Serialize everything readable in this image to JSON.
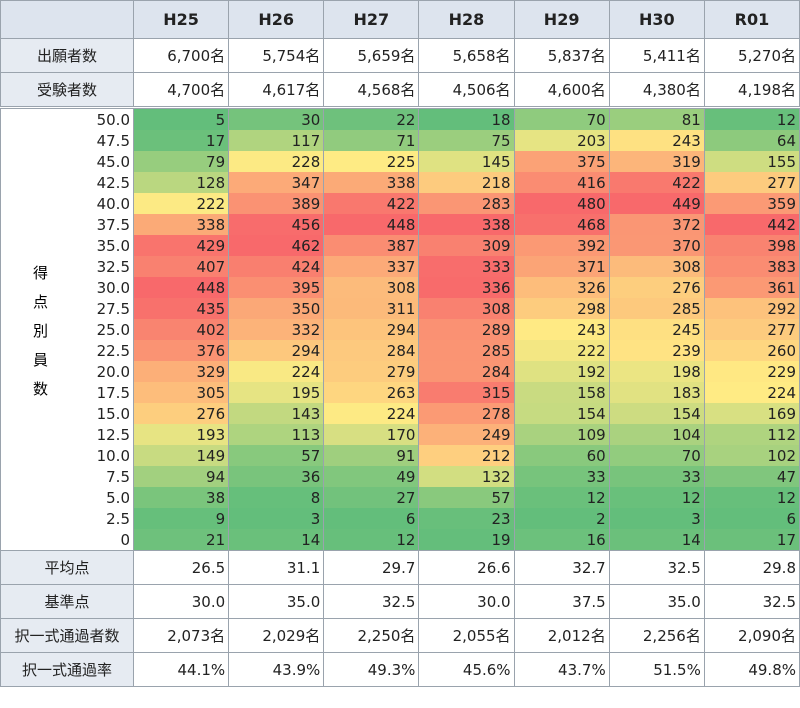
{
  "header": [
    "H25",
    "H26",
    "H27",
    "H28",
    "H29",
    "H30",
    "R01"
  ],
  "top_rows": [
    {
      "label": "出願者数",
      "values": [
        "6,700名",
        "5,754名",
        "5,659名",
        "5,658名",
        "5,837名",
        "5,411名",
        "5,270名"
      ]
    },
    {
      "label": "受験者数",
      "values": [
        "4,700名",
        "4,617名",
        "4,568名",
        "4,506名",
        "4,600名",
        "4,380名",
        "4,198名"
      ]
    }
  ],
  "heatmap": {
    "label": "得点別員数",
    "rows": [
      {
        "score": "50.0",
        "counts": [
          5,
          30,
          22,
          18,
          70,
          81,
          12
        ]
      },
      {
        "score": "47.5",
        "counts": [
          17,
          117,
          71,
          75,
          203,
          243,
          64
        ]
      },
      {
        "score": "45.0",
        "counts": [
          79,
          228,
          225,
          145,
          375,
          319,
          155
        ]
      },
      {
        "score": "42.5",
        "counts": [
          128,
          347,
          338,
          218,
          416,
          422,
          277
        ]
      },
      {
        "score": "40.0",
        "counts": [
          222,
          389,
          422,
          283,
          480,
          449,
          359
        ]
      },
      {
        "score": "37.5",
        "counts": [
          338,
          456,
          448,
          338,
          468,
          372,
          442
        ]
      },
      {
        "score": "35.0",
        "counts": [
          429,
          462,
          387,
          309,
          392,
          370,
          398
        ]
      },
      {
        "score": "32.5",
        "counts": [
          407,
          424,
          337,
          333,
          371,
          308,
          383
        ]
      },
      {
        "score": "30.0",
        "counts": [
          448,
          395,
          308,
          336,
          326,
          276,
          361
        ]
      },
      {
        "score": "27.5",
        "counts": [
          435,
          350,
          311,
          308,
          298,
          285,
          292
        ]
      },
      {
        "score": "25.0",
        "counts": [
          402,
          332,
          294,
          289,
          243,
          245,
          277
        ]
      },
      {
        "score": "22.5",
        "counts": [
          376,
          294,
          284,
          285,
          222,
          239,
          260
        ]
      },
      {
        "score": "20.0",
        "counts": [
          329,
          224,
          279,
          284,
          192,
          198,
          229
        ]
      },
      {
        "score": "17.5",
        "counts": [
          305,
          195,
          263,
          315,
          158,
          183,
          224
        ]
      },
      {
        "score": "15.0",
        "counts": [
          276,
          143,
          224,
          278,
          154,
          154,
          169
        ]
      },
      {
        "score": "12.5",
        "counts": [
          193,
          113,
          170,
          249,
          109,
          104,
          112
        ]
      },
      {
        "score": "10.0",
        "counts": [
          149,
          57,
          91,
          212,
          60,
          70,
          102
        ]
      },
      {
        "score": "7.5",
        "counts": [
          94,
          36,
          49,
          132,
          33,
          33,
          47
        ]
      },
      {
        "score": "5.0",
        "counts": [
          38,
          8,
          27,
          57,
          12,
          12,
          12
        ]
      },
      {
        "score": "2.5",
        "counts": [
          9,
          3,
          6,
          23,
          2,
          3,
          6
        ]
      },
      {
        "score": "0",
        "counts": [
          21,
          14,
          12,
          19,
          16,
          14,
          17
        ]
      }
    ]
  },
  "bottom_rows": [
    {
      "label": "平均点",
      "values": [
        "26.5",
        "31.1",
        "29.7",
        "26.6",
        "32.7",
        "32.5",
        "29.8"
      ]
    },
    {
      "label": "基準点",
      "values": [
        "30.0",
        "35.0",
        "32.5",
        "30.0",
        "37.5",
        "35.0",
        "32.5"
      ]
    },
    {
      "label": "択一式通過者数",
      "values": [
        "2,073名",
        "2,029名",
        "2,250名",
        "2,055名",
        "2,012名",
        "2,256名",
        "2,090名"
      ]
    },
    {
      "label": "択一式通過率",
      "values": [
        "44.1%",
        "43.9%",
        "49.3%",
        "45.6%",
        "43.7%",
        "51.5%",
        "49.8%"
      ]
    }
  ]
}
